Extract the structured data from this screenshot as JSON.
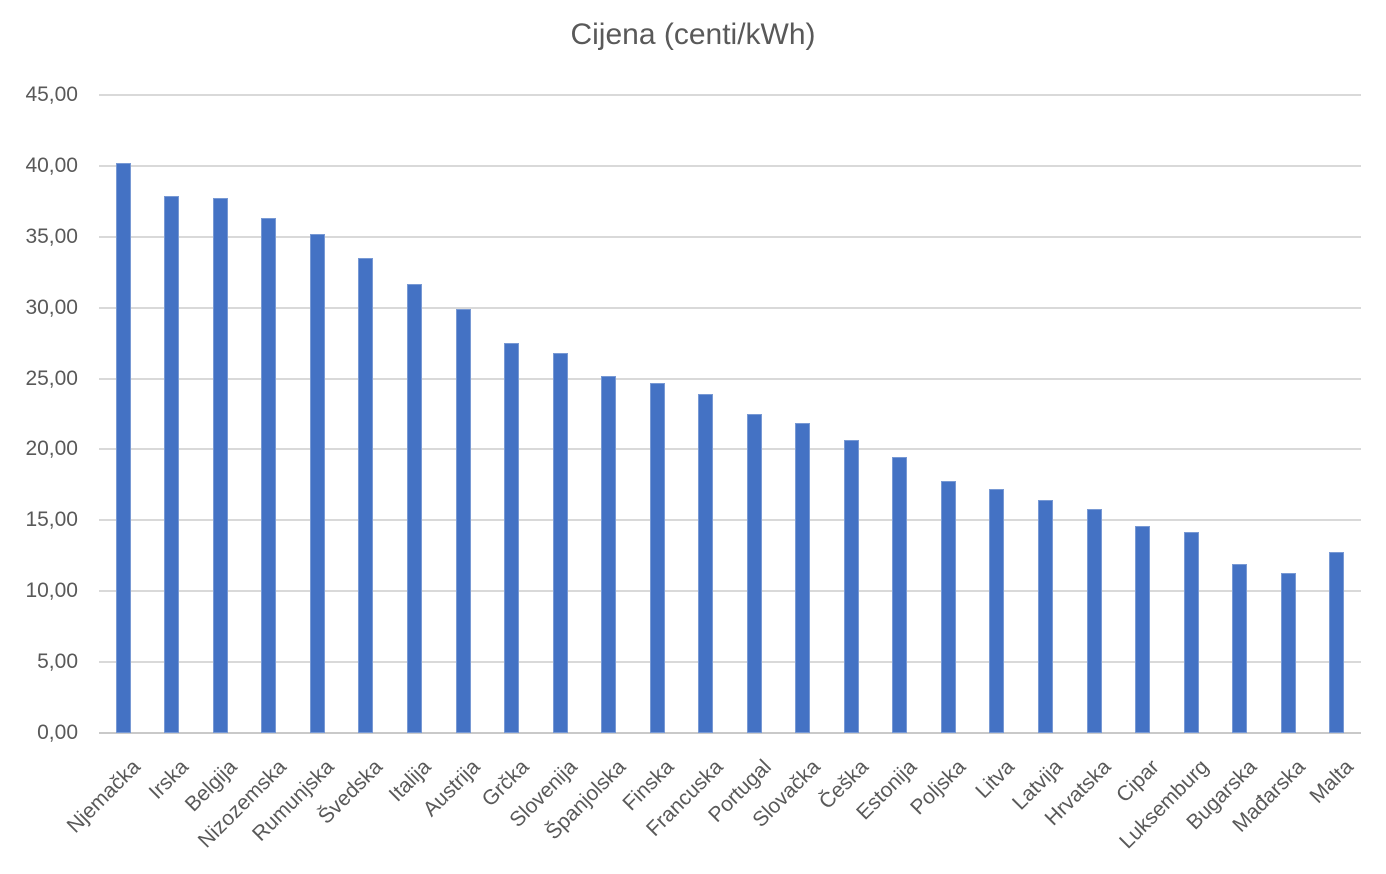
{
  "chart_data": {
    "type": "bar",
    "title": "Cijena (centi/kWh)",
    "categories": [
      "Njemačka",
      "Irska",
      "Belgija",
      "Nizozemska",
      "Rumunjska",
      "Švedska",
      "Italija",
      "Austrija",
      "Grčka",
      "Slovenija",
      "Španjolska",
      "Finska",
      "Francuska",
      "Portugal",
      "Slovačka",
      "Češka",
      "Estonija",
      "Poljska",
      "Litva",
      "Latvija",
      "Hrvatska",
      "Cipar",
      "Luksemburg",
      "Bugarska",
      "Mađarska",
      "Malta"
    ],
    "values": [
      40.2,
      37.9,
      37.7,
      36.3,
      35.2,
      33.5,
      31.7,
      29.9,
      27.5,
      26.8,
      25.2,
      24.7,
      23.9,
      22.5,
      21.9,
      20.7,
      19.5,
      17.8,
      17.2,
      16.4,
      15.8,
      14.6,
      14.2,
      11.9,
      11.3,
      12.8
    ],
    "xlabel": "",
    "ylabel": "",
    "ylim": [
      0,
      45
    ],
    "ytick_step": 5,
    "ytick_labels": [
      "0,00",
      "5,00",
      "10,00",
      "15,00",
      "20,00",
      "25,00",
      "30,00",
      "35,00",
      "40,00",
      "45,00"
    ],
    "grid": true,
    "legend": false,
    "bar_color": "#4472C4",
    "gridline_color": "#D9D9D9",
    "axis_line_color": "#C9C9C9",
    "text_color": "#595959"
  }
}
